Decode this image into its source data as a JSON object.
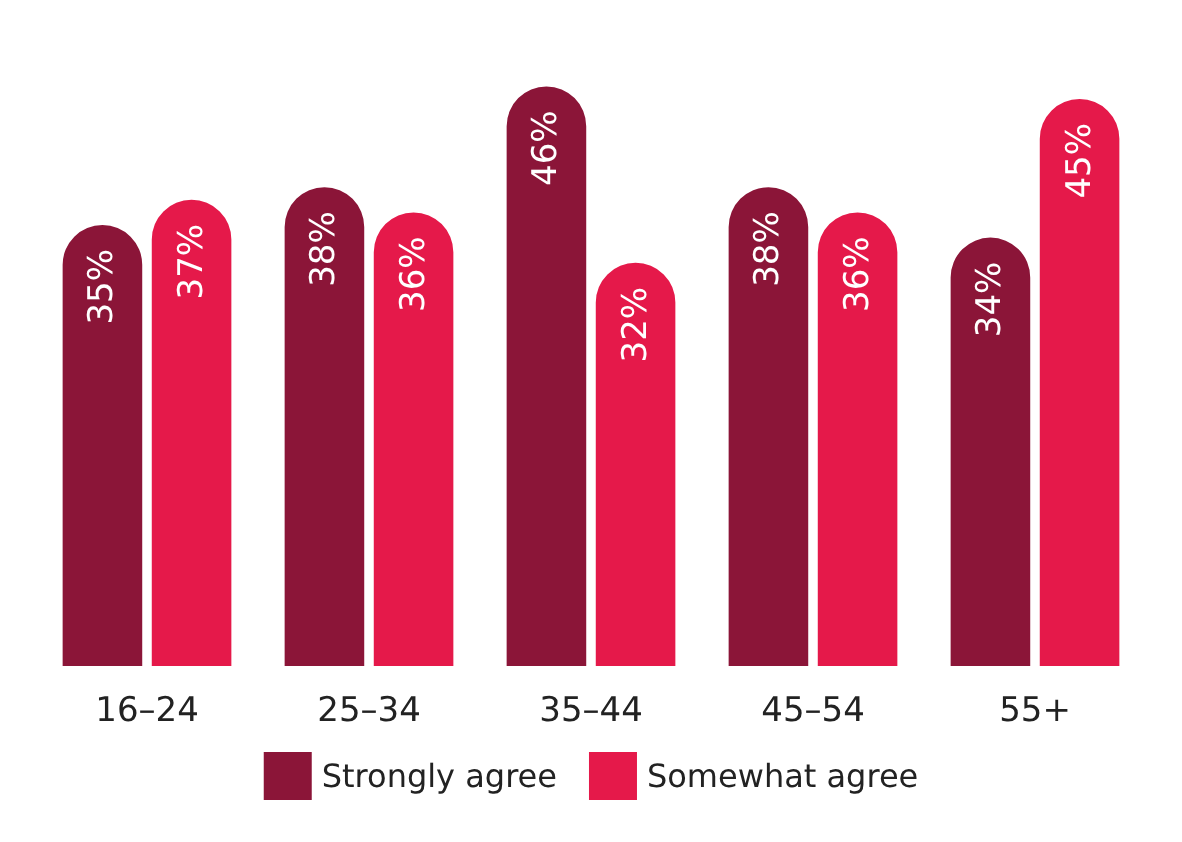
{
  "chart_data": {
    "type": "bar",
    "categories": [
      "16–24",
      "25–34",
      "35–44",
      "45–54",
      "55+"
    ],
    "series": [
      {
        "name": "Strongly agree",
        "color": "#8b1538",
        "values": [
          35,
          38,
          46,
          38,
          34
        ],
        "value_labels": [
          "35%",
          "38%",
          "46%",
          "38%",
          "34%"
        ]
      },
      {
        "name": "Somewhat agree",
        "color": "#e5194a",
        "values": [
          37,
          36,
          32,
          36,
          45
        ],
        "value_labels": [
          "37%",
          "36%",
          "32%",
          "36%",
          "45%"
        ]
      }
    ],
    "legend": "bottom"
  }
}
